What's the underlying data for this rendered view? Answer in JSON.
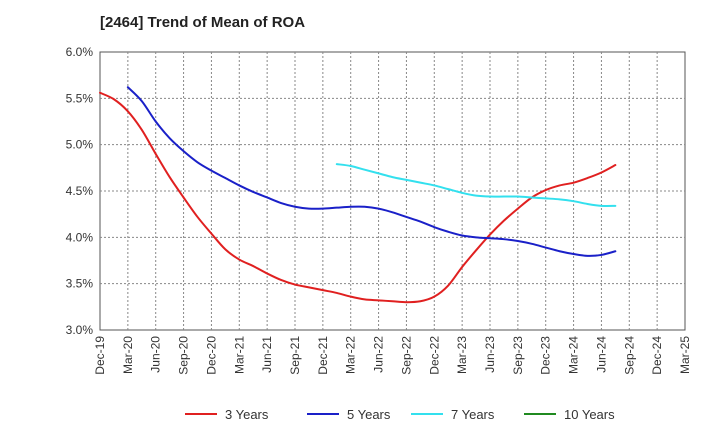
{
  "chart_data": {
    "type": "line",
    "title": "[2464]  Trend of Mean of ROA",
    "xlabel": "",
    "ylabel": "",
    "ylim": [
      3.0,
      6.0
    ],
    "y_ticks": [
      "3.0%",
      "3.5%",
      "4.0%",
      "4.5%",
      "5.0%",
      "5.5%",
      "6.0%"
    ],
    "y_tick_values": [
      3.0,
      3.5,
      4.0,
      4.5,
      5.0,
      5.5,
      6.0
    ],
    "x_ticks": [
      "Dec-19",
      "Mar-20",
      "Jun-20",
      "Sep-20",
      "Dec-20",
      "Mar-21",
      "Jun-21",
      "Sep-21",
      "Dec-21",
      "Mar-22",
      "Jun-22",
      "Sep-22",
      "Dec-22",
      "Mar-23",
      "Jun-23",
      "Sep-23",
      "Dec-23",
      "Mar-24",
      "Jun-24",
      "Sep-24",
      "Dec-24",
      "Mar-25"
    ],
    "grid": true,
    "legend_position": "bottom",
    "series": [
      {
        "name": "3 Years",
        "color": "#e02020",
        "values": [
          5.56,
          5.49,
          5.36,
          5.16,
          4.9,
          4.65,
          4.43,
          4.22,
          4.04,
          3.87,
          3.76,
          3.69,
          3.61,
          3.54,
          3.49,
          3.46,
          3.43,
          3.4,
          3.36,
          3.33,
          3.32,
          3.31,
          3.3,
          3.31,
          3.36,
          3.48,
          3.68,
          3.86,
          4.03,
          4.18,
          4.31,
          4.43,
          4.51,
          4.56,
          4.59,
          4.64,
          4.7,
          4.78
        ]
      },
      {
        "name": "5 Years",
        "color": "#1a20c8",
        "values": [
          null,
          null,
          5.62,
          5.47,
          5.25,
          5.07,
          4.93,
          4.81,
          4.72,
          4.64,
          4.56,
          4.49,
          4.43,
          4.37,
          4.33,
          4.31,
          4.31,
          4.32,
          4.33,
          4.33,
          4.31,
          4.27,
          4.22,
          4.17,
          4.11,
          4.06,
          4.02,
          4.0,
          3.99,
          3.98,
          3.96,
          3.93,
          3.89,
          3.85,
          3.82,
          3.8,
          3.81,
          3.85
        ]
      },
      {
        "name": "7 Years",
        "color": "#33e0ee",
        "values": [
          null,
          null,
          null,
          null,
          null,
          null,
          null,
          null,
          null,
          null,
          null,
          null,
          null,
          null,
          null,
          null,
          null,
          4.79,
          4.77,
          4.73,
          4.69,
          4.65,
          4.62,
          4.59,
          4.56,
          4.52,
          4.48,
          4.45,
          4.44,
          4.44,
          4.44,
          4.43,
          4.42,
          4.41,
          4.39,
          4.36,
          4.34,
          4.34
        ]
      },
      {
        "name": "10 Years",
        "color": "#208a20",
        "values": []
      }
    ]
  }
}
